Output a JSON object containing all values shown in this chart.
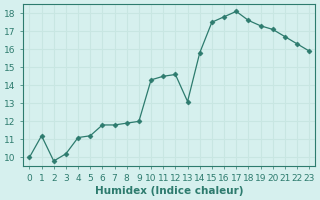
{
  "xlabel": "Humidex (Indice chaleur)",
  "ylabel": "",
  "x": [
    0,
    1,
    2,
    3,
    4,
    5,
    6,
    7,
    8,
    9,
    10,
    11,
    12,
    13,
    14,
    15,
    16,
    17,
    18,
    19,
    20,
    21,
    22,
    23
  ],
  "y": [
    10.0,
    11.2,
    9.8,
    10.2,
    11.1,
    11.2,
    11.8,
    11.8,
    11.9,
    12.0,
    14.3,
    14.5,
    14.6,
    13.1,
    15.8,
    17.5,
    17.8,
    18.1,
    17.6,
    17.3,
    17.1,
    16.7,
    16.3,
    15.9
  ],
  "line_color": "#2d7b6e",
  "marker": "D",
  "marker_size": 2.5,
  "bg_color": "#d6f0ee",
  "grid_color": "#c8e6e2",
  "xlim": [
    -0.5,
    23.5
  ],
  "ylim": [
    9.5,
    18.5
  ],
  "yticks": [
    10,
    11,
    12,
    13,
    14,
    15,
    16,
    17,
    18
  ],
  "xticks": [
    0,
    1,
    2,
    3,
    4,
    5,
    6,
    7,
    8,
    9,
    10,
    11,
    12,
    13,
    14,
    15,
    16,
    17,
    18,
    19,
    20,
    21,
    22,
    23
  ],
  "tick_label_fontsize": 6.5,
  "xlabel_fontsize": 7.5,
  "spine_color": "#2d7b6e"
}
